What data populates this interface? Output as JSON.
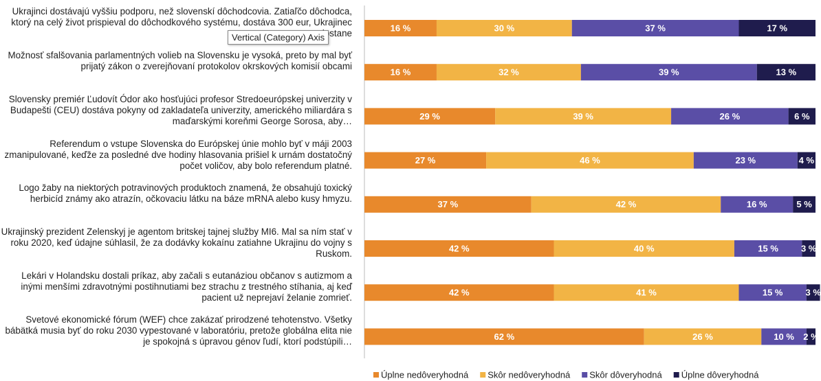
{
  "chart_data": {
    "type": "stacked-bar-horizontal",
    "categories": [
      "Ukrajinci dostávajú vyššiu podporu, než slovenskí dôchodcovia. Zatiaľčo dôchodca, ktorý na celý život prispieval do dôchodkového systému, dostáva 300 eur, Ukrajinec dostane",
      "Možnosť sfalšovania parlamentných volieb na Slovensku je vysoká, preto by mal byť prijatý zákon o zverejňovaní protokolov okrskových komisií obcami",
      "Slovensky premiér Ľudovít Ódor ako hosťujúci profesor Stredoeurópskej univerzity v Budapešti (CEU) dostáva pokyny od zakladateľa univerzity, amerického miliardára s maďarskými koreňmi George Sorosa, aby…",
      "Referendum o vstupe Slovenska do Európskej únie mohlo byť v máji 2003 zmanipulované, keďže za posledné dve hodiny hlasovania prišiel k urnám dostatočný počet voličov, aby bolo referendum platné.",
      "Logo žaby na niektorých potravinových produktoch znamená, že obsahujú toxický herbicíd známy ako atrazín, očkovaciu látku na báze mRNA alebo kusy hmyzu.",
      "Ukrajinský prezident Zelenskyj je agentom britskej tajnej služby MI6. Mal sa ním stať v roku 2020, keď údajne súhlasil, že za dodávky kokaínu zatiahne Ukrajinu do vojny s Ruskom.",
      "Lekári v Holandsku dostali príkaz, aby začali s eutanáziou občanov s autizmom a inými menšími zdravotnými postihnutiami bez strachu z trestného stíhania, aj keď pacient už neprejaví želanie zomrieť.",
      "Svetové ekonomické fórum (WEF) chce zakázať prirodzené tehotenstvo. Všetky bábätká musia byť do roku 2030 vypestované v laboratóriu, pretože globálna elita nie je spokojná s úpravou génov ľudí, ktorí podstúpili…"
    ],
    "series": [
      {
        "name": "Úplne nedôveryhodná",
        "color": "#e8892c",
        "values": [
          16,
          16,
          29,
          27,
          37,
          42,
          42,
          62
        ],
        "value_labels": [
          "16 %",
          "16 %",
          "29 %",
          "27 %",
          "37 %",
          "42 %",
          "42 %",
          "62 %"
        ]
      },
      {
        "name": "Skôr nedôveryhodná",
        "color": "#f2b445",
        "values": [
          30,
          32,
          39,
          46,
          42,
          40,
          41,
          26
        ],
        "value_labels": [
          "30 %",
          "32 %",
          "39 %",
          "46 %",
          "42 %",
          "40 %",
          "41 %",
          "26 %"
        ]
      },
      {
        "name": "Skôr dôveryhodná",
        "color": "#5a4ea6",
        "values": [
          37,
          39,
          26,
          23,
          16,
          15,
          15,
          10
        ],
        "value_labels": [
          "37 %",
          "39 %",
          "26 %",
          "23 %",
          "16 %",
          "15 %",
          "15 %",
          "10 %"
        ]
      },
      {
        "name": "Úplne dôveryhodná",
        "color": "#1f1c4d",
        "values": [
          17,
          13,
          6,
          4,
          5,
          3,
          3,
          2
        ],
        "value_labels": [
          "17 %",
          "13 %",
          "6 %",
          "4 %",
          "5 %",
          "3 %",
          "3 %",
          "2 %"
        ]
      }
    ],
    "xlim": [
      0,
      100
    ],
    "legend": "bottom",
    "tooltip": "Vertical (Category) Axis"
  }
}
